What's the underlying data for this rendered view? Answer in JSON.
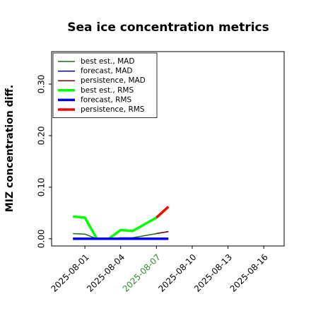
{
  "chart_data": {
    "type": "line",
    "title": "Sea ice concentration metrics",
    "y_label": "MIZ concentration diff.",
    "x": [
      "2025-07-31",
      "2025-08-01",
      "2025-08-02",
      "2025-08-03",
      "2025-08-04",
      "2025-08-05",
      "2025-08-07",
      "2025-08-08"
    ],
    "series": [
      {
        "name": "best est., MAD",
        "color": "#1a6b1a",
        "linewidth": 1.5,
        "values": [
          0.01,
          0.009,
          0.0,
          0.0,
          0.002,
          0.002,
          0.01,
          0.014
        ]
      },
      {
        "name": "forecast,  MAD",
        "color": "#00007f",
        "linewidth": 1.5,
        "values": [
          0,
          0,
          0,
          0,
          0,
          0,
          0,
          0
        ]
      },
      {
        "name": "persistence, MAD",
        "color": "#7f0000",
        "linewidth": 1.5,
        "values": [
          null,
          null,
          null,
          null,
          null,
          null,
          0.01,
          0.014
        ]
      },
      {
        "name": "best est., RMS",
        "color": "#00ff00",
        "linewidth": 3.5,
        "values": [
          0.043,
          0.041,
          0.0,
          0.0,
          0.017,
          0.015,
          0.041,
          0.062
        ]
      },
      {
        "name": "forecast,  RMS",
        "color": "#0000ff",
        "linewidth": 3.5,
        "values": [
          0,
          0,
          0,
          0,
          0,
          0,
          0,
          0
        ]
      },
      {
        "name": "persistence, RMS",
        "color": "#ff0000",
        "linewidth": 3.5,
        "values": [
          null,
          null,
          null,
          null,
          null,
          null,
          0.041,
          0.062
        ]
      }
    ],
    "xlim": [
      "2025-07-29T05:00",
      "2025-08-17T17:00"
    ],
    "xticks": [
      "2025-08-01",
      "2025-08-04",
      "2025-08-07",
      "2025-08-10",
      "2025-08-13",
      "2025-08-16"
    ],
    "highlight_xtick": "2025-08-07",
    "highlight_color": "#2e8b2e",
    "ylim": [
      -0.014,
      0.363
    ],
    "yticks": [
      {
        "value": 0,
        "label": "0.00"
      },
      {
        "value": 0.1,
        "label": "0.10"
      },
      {
        "value": 0.2,
        "label": "0.20"
      },
      {
        "value": 0.3,
        "label": "0.30"
      }
    ],
    "legend": "upper left"
  }
}
